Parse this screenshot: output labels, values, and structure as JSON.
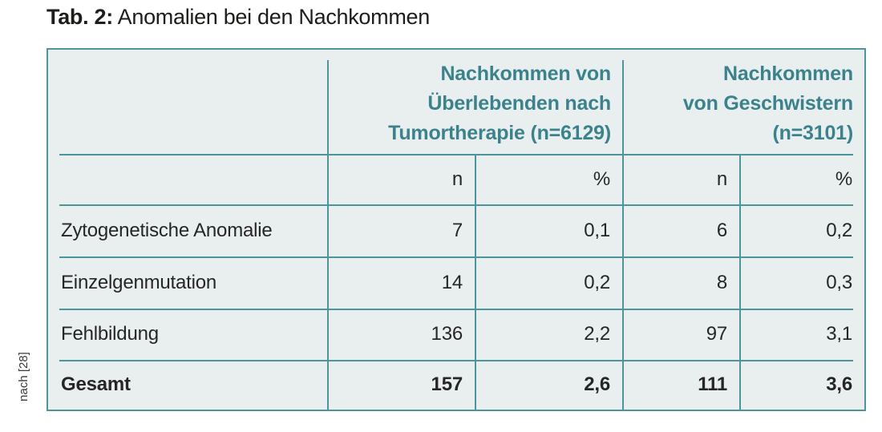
{
  "caption": {
    "prefix": "Tab. 2:",
    "text": "Anomalien bei den Nachkommen"
  },
  "source_note": "nach [28]",
  "colors": {
    "accent_teal": "#4e949b",
    "header_text_teal": "#3c828c",
    "table_background": "#e9efef",
    "body_text": "#262626"
  },
  "table": {
    "group_headers": [
      {
        "title": "Nachkommen von\nÜberlebenden nach\nTumortherapie (n=6129)"
      },
      {
        "title": "Nachkommen\nvon Geschwistern\n(n=3101)"
      }
    ],
    "sub_headers": [
      "n",
      "%",
      "n",
      "%"
    ],
    "rows": [
      {
        "label": "Zytogenetische Anomalie",
        "values": [
          "7",
          "0,1",
          "6",
          "0,2"
        ]
      },
      {
        "label": "Einzelgenmutation",
        "values": [
          "14",
          "0,2",
          "8",
          "0,3"
        ]
      },
      {
        "label": "Fehlbildung",
        "values": [
          "136",
          "2,2",
          "97",
          "3,1"
        ]
      },
      {
        "label": "Gesamt",
        "values": [
          "157",
          "2,6",
          "111",
          "3,6"
        ]
      }
    ]
  }
}
